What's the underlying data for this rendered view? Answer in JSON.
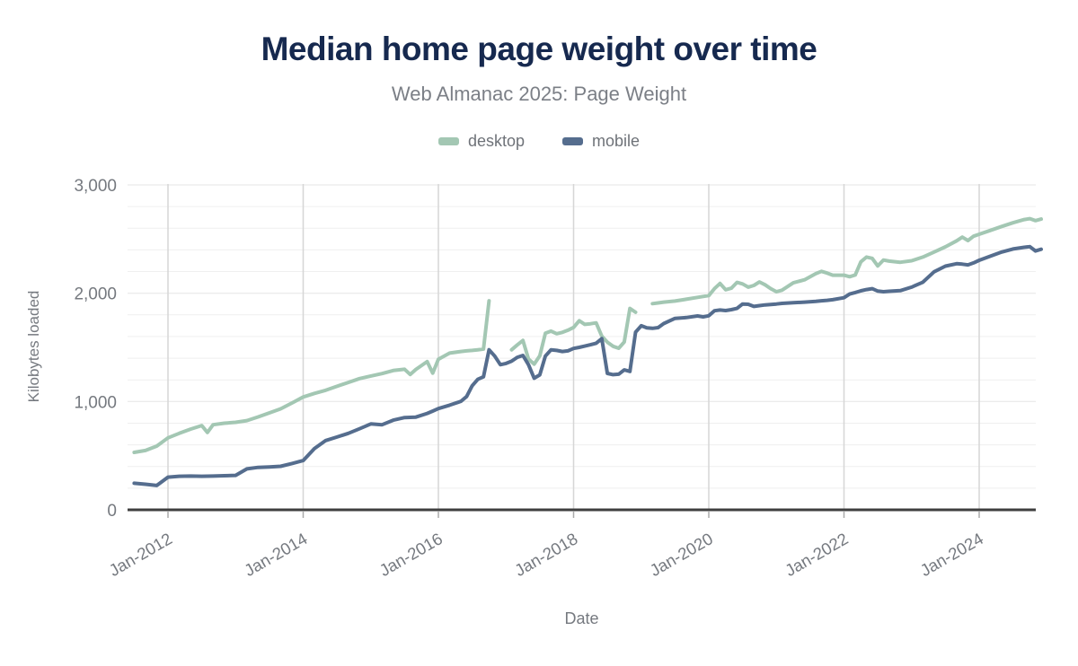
{
  "header": {
    "title": "Median home page weight over time",
    "subtitle": "Web Almanac 2025: Page Weight"
  },
  "axes": {
    "x_title": "Date",
    "y_title": "Kilobytes loaded"
  },
  "legend": {
    "items": [
      {
        "label": "desktop",
        "color": "#a3c7b3"
      },
      {
        "label": "mobile",
        "color": "#556d8e"
      }
    ]
  },
  "chart_data": {
    "type": "line",
    "title": "Median home page weight over time",
    "subtitle": "Web Almanac 2025: Page Weight",
    "xlabel": "Date",
    "ylabel": "Kilobytes loaded",
    "ylim": [
      0,
      3000
    ],
    "grid": {
      "horizontal_step": 200,
      "vertical_every_years": 2,
      "gridlines_on": true
    },
    "legend_position": "top-center",
    "y_ticks": [
      {
        "value": 0,
        "label": "0"
      },
      {
        "value": 1000,
        "label": "1,000"
      },
      {
        "value": 2000,
        "label": "2,000"
      },
      {
        "value": 3000,
        "label": "3,000"
      }
    ],
    "x_ticks": [
      {
        "year": 2012,
        "label": "Jan-2012"
      },
      {
        "year": 2014,
        "label": "Jan-2014"
      },
      {
        "year": 2016,
        "label": "Jan-2016"
      },
      {
        "year": 2018,
        "label": "Jan-2018"
      },
      {
        "year": 2020,
        "label": "Jan-2020"
      },
      {
        "year": 2022,
        "label": "Jan-2022"
      },
      {
        "year": 2024,
        "label": "Jan-2024"
      }
    ],
    "dates": [
      "2011-07",
      "2011-09",
      "2011-11",
      "2012-01",
      "2012-03",
      "2012-05",
      "2012-07",
      "2012-08",
      "2012-09",
      "2012-11",
      "2013-01",
      "2013-03",
      "2013-05",
      "2013-07",
      "2013-09",
      "2013-11",
      "2014-01",
      "2014-03",
      "2014-05",
      "2014-07",
      "2014-09",
      "2014-11",
      "2015-01",
      "2015-03",
      "2015-05",
      "2015-07",
      "2015-08",
      "2015-09",
      "2015-11",
      "2015-12",
      "2016-01",
      "2016-03",
      "2016-05",
      "2016-06",
      "2016-07",
      "2016-08",
      "2016-09",
      "2016-10",
      "2016-11",
      "2016-12",
      "2017-01",
      "2017-02",
      "2017-03",
      "2017-04",
      "2017-05",
      "2017-06",
      "2017-07",
      "2017-08",
      "2017-09",
      "2017-10",
      "2017-11",
      "2017-12",
      "2018-01",
      "2018-02",
      "2018-03",
      "2018-04",
      "2018-05",
      "2018-06",
      "2018-07",
      "2018-08",
      "2018-09",
      "2018-10",
      "2018-11",
      "2018-12",
      "2019-01",
      "2019-02",
      "2019-03",
      "2019-04",
      "2019-05",
      "2019-07",
      "2019-09",
      "2019-11",
      "2019-12",
      "2020-01",
      "2020-02",
      "2020-03",
      "2020-04",
      "2020-05",
      "2020-06",
      "2020-07",
      "2020-08",
      "2020-09",
      "2020-10",
      "2020-11",
      "2020-12",
      "2021-01",
      "2021-02",
      "2021-04",
      "2021-06",
      "2021-08",
      "2021-09",
      "2021-10",
      "2021-11",
      "2022-01",
      "2022-02",
      "2022-03",
      "2022-04",
      "2022-05",
      "2022-06",
      "2022-07",
      "2022-08",
      "2022-09",
      "2022-11",
      "2023-01",
      "2023-03",
      "2023-05",
      "2023-07",
      "2023-09",
      "2023-10",
      "2023-11",
      "2023-12",
      "2024-01",
      "2024-03",
      "2024-05",
      "2024-07",
      "2024-09",
      "2024-10",
      "2024-11",
      "2024-12"
    ],
    "series": [
      {
        "name": "desktop",
        "color": "#a3c7b3",
        "values": [
          530,
          548,
          588,
          665,
          706,
          745,
          778,
          714,
          786,
          800,
          808,
          824,
          858,
          895,
          932,
          986,
          1042,
          1075,
          1104,
          1140,
          1176,
          1212,
          1236,
          1258,
          1286,
          1298,
          1250,
          1296,
          1368,
          1262,
          1390,
          1447,
          1462,
          1468,
          1472,
          1478,
          1484,
          1930,
          null,
          null,
          null,
          1478,
          1522,
          1564,
          1392,
          1345,
          1422,
          1630,
          1650,
          1626,
          1638,
          1658,
          1684,
          1746,
          1712,
          1718,
          1726,
          1604,
          1548,
          1510,
          1492,
          1550,
          1860,
          1824,
          null,
          null,
          1904,
          1910,
          1918,
          1928,
          1944,
          1962,
          1970,
          1978,
          2042,
          2090,
          2032,
          2046,
          2100,
          2086,
          2056,
          2072,
          2104,
          2078,
          2042,
          2014,
          2028,
          2096,
          2124,
          2180,
          2202,
          2186,
          2166,
          2166,
          2152,
          2168,
          2290,
          2334,
          2322,
          2252,
          2306,
          2296,
          2286,
          2300,
          2334,
          2380,
          2428,
          2484,
          2518,
          2486,
          2526,
          2544,
          2580,
          2616,
          2650,
          2680,
          2688,
          2670,
          2684
        ]
      },
      {
        "name": "mobile",
        "color": "#556d8e",
        "values": [
          245,
          236,
          225,
          302,
          310,
          312,
          310,
          311,
          312,
          315,
          318,
          378,
          392,
          396,
          402,
          428,
          455,
          565,
          640,
          672,
          706,
          748,
          793,
          786,
          828,
          852,
          854,
          856,
          890,
          912,
          935,
          966,
          1002,
          1046,
          1145,
          1205,
          1228,
          1478,
          1420,
          1340,
          1352,
          1372,
          1408,
          1425,
          1340,
          1215,
          1246,
          1420,
          1478,
          1472,
          1462,
          1468,
          1490,
          1500,
          1512,
          1524,
          1538,
          1580,
          1260,
          1248,
          1252,
          1292,
          1278,
          1640,
          1700,
          1680,
          1676,
          1682,
          1720,
          1768,
          1775,
          1790,
          1782,
          1792,
          1838,
          1845,
          1840,
          1848,
          1860,
          1900,
          1898,
          1878,
          1885,
          1892,
          1896,
          1900,
          1906,
          1912,
          1918,
          1925,
          1930,
          1934,
          1940,
          1958,
          1992,
          2006,
          2022,
          2034,
          2042,
          2020,
          2014,
          2018,
          2024,
          2056,
          2102,
          2198,
          2250,
          2272,
          2268,
          2262,
          2280,
          2304,
          2342,
          2380,
          2408,
          2424,
          2430,
          2390,
          2406
        ]
      }
    ]
  }
}
